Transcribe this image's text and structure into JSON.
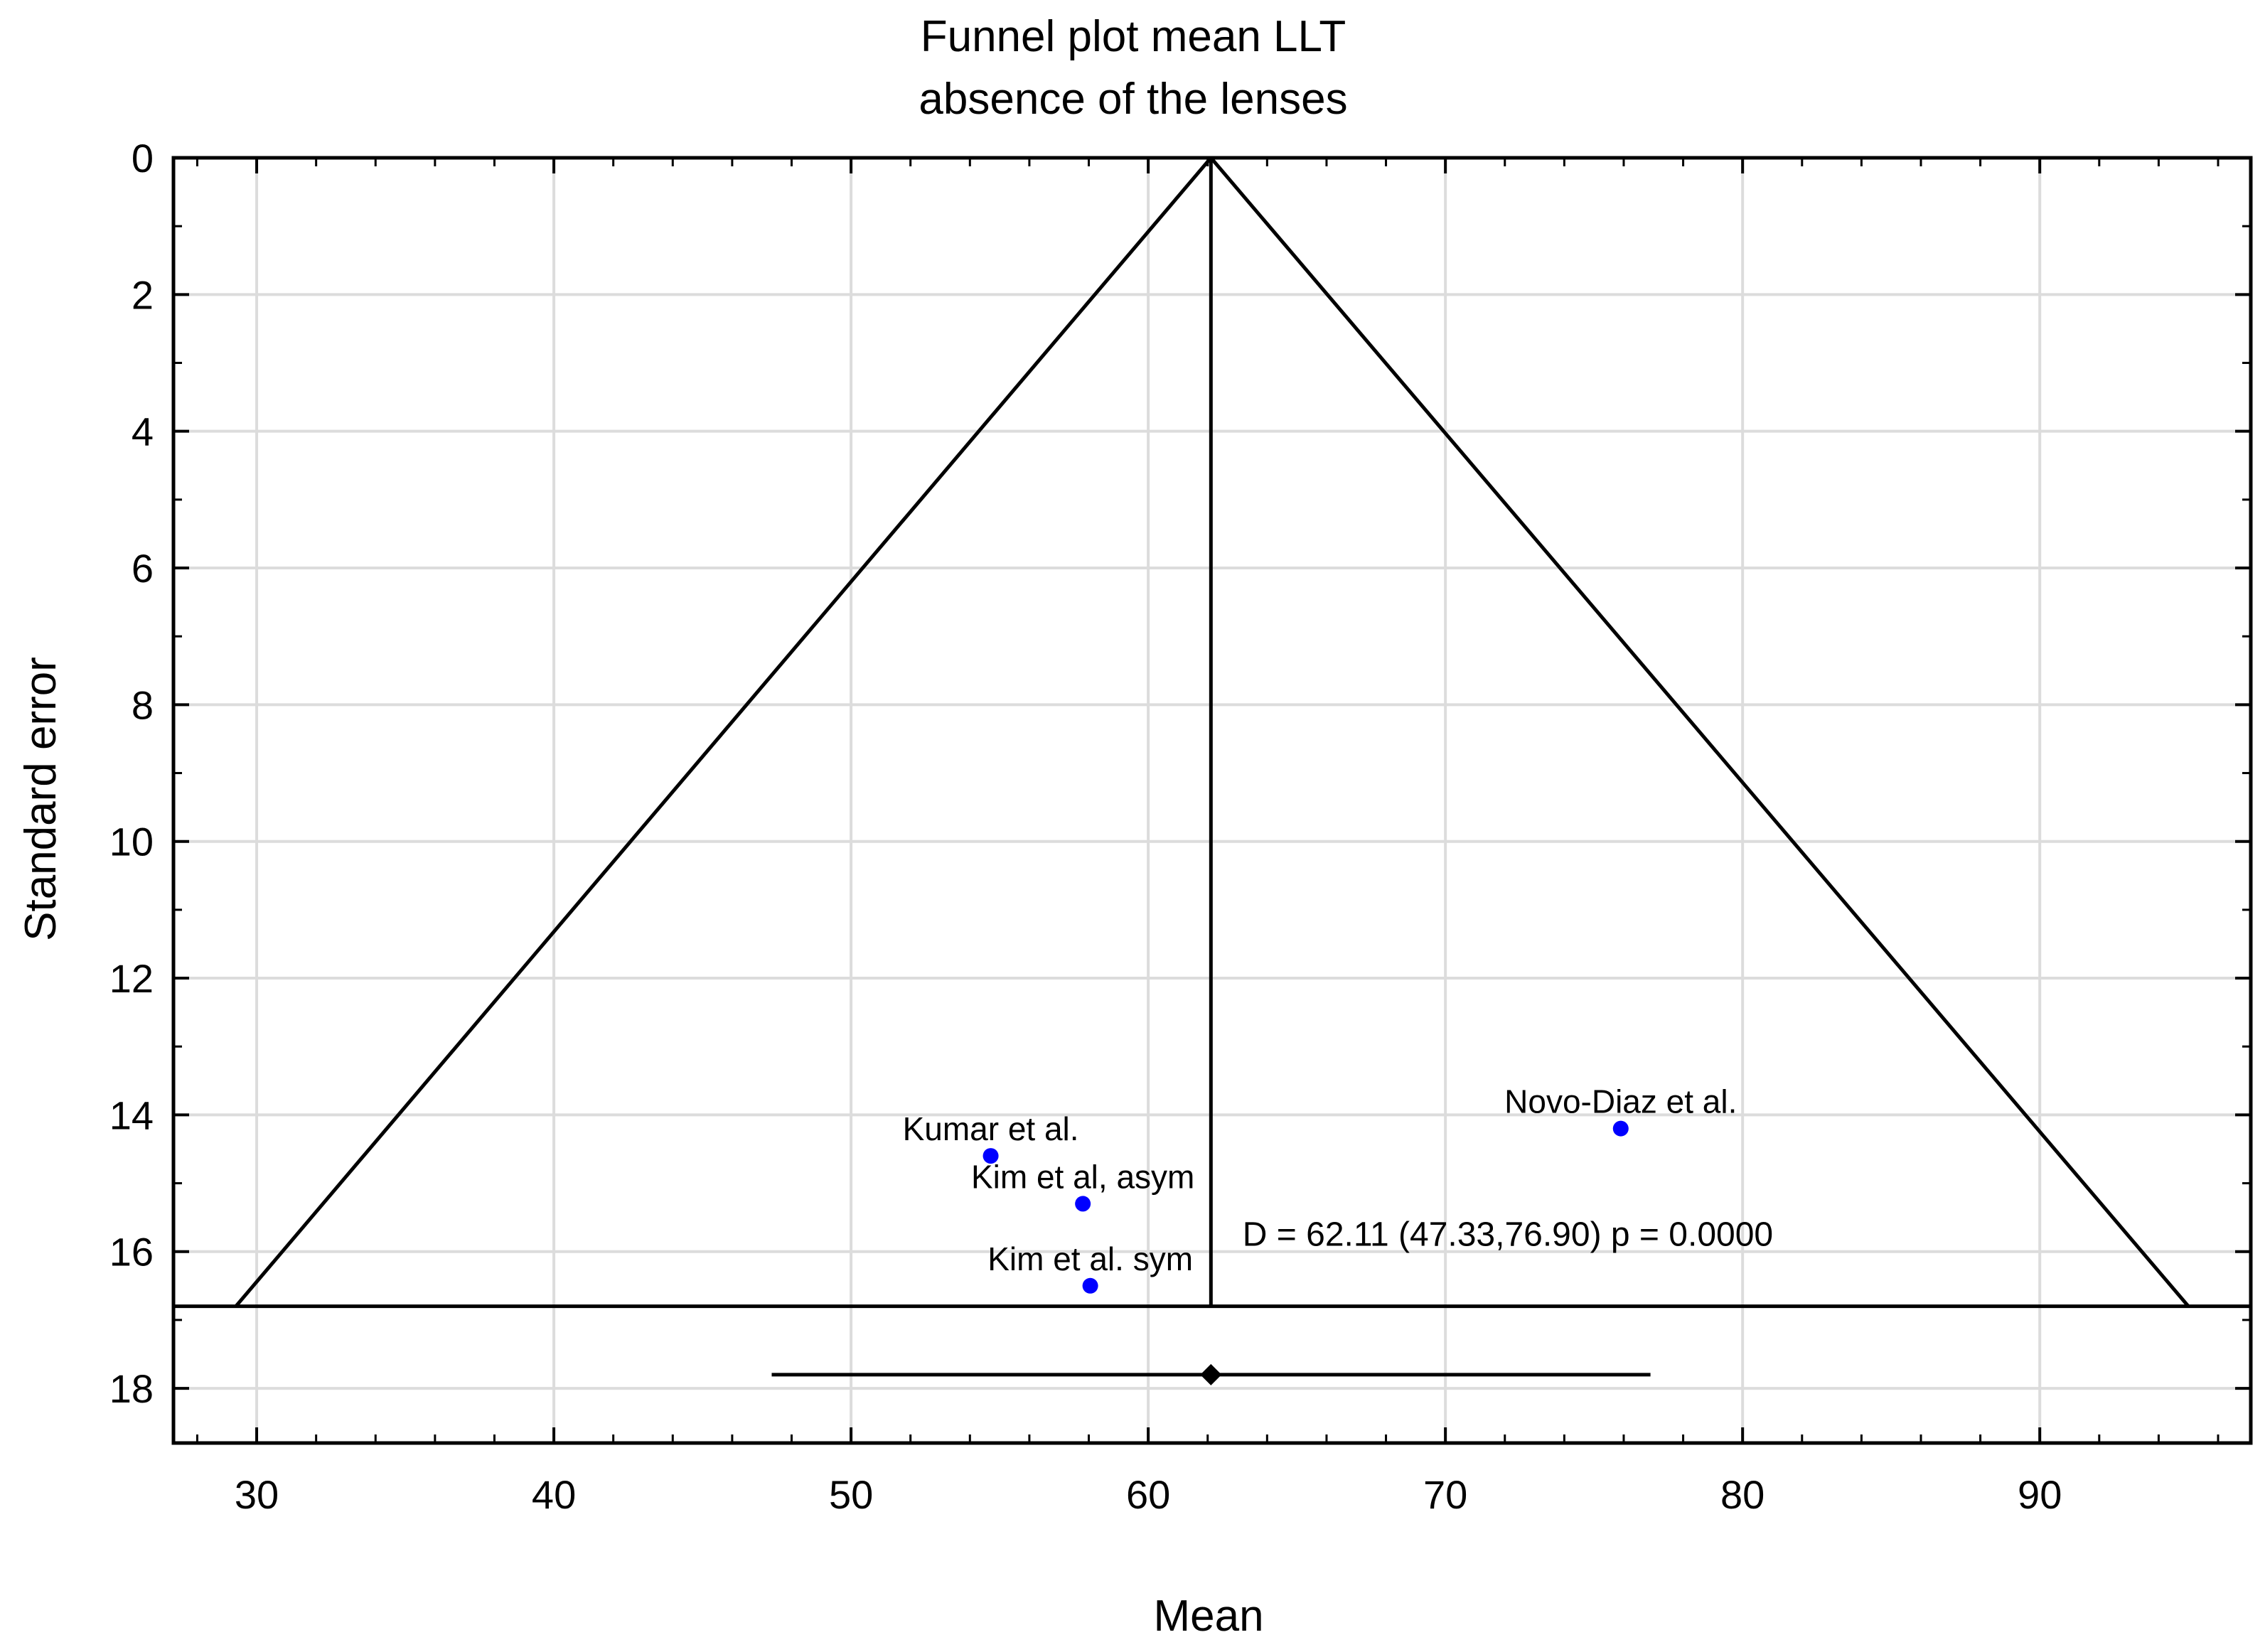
{
  "chart_data": {
    "type": "scatter",
    "title": "Funnel plot mean LLT",
    "subtitle": "absence of the lenses",
    "xlabel": "Mean",
    "ylabel": "Standard error",
    "xlim": [
      27.2,
      97.1
    ],
    "ylim": [
      0,
      18.8
    ],
    "y_inverted": true,
    "x_ticks": [
      30,
      40,
      50,
      60,
      70,
      80,
      90
    ],
    "y_ticks": [
      0,
      2,
      4,
      6,
      8,
      10,
      12,
      14,
      16,
      18
    ],
    "grid": true,
    "points": [
      {
        "label": "Kumar et al.",
        "x": 54.7,
        "y": 14.6
      },
      {
        "label": "Kim et al, asym",
        "x": 57.8,
        "y": 15.3
      },
      {
        "label": "Kim et al. sym",
        "x": 58.05,
        "y": 16.5
      },
      {
        "label": "Novo-Diaz et al.",
        "x": 75.9,
        "y": 14.2
      }
    ],
    "point_color": "#0000ff",
    "funnel": {
      "apex_x": 62.11,
      "apex_y": 0,
      "base_y": 16.8,
      "base_left_x": 29.3,
      "base_right_x": 95.0
    },
    "pooled_estimate": {
      "estimate": 62.11,
      "ci_low": 47.33,
      "ci_high": 76.9,
      "y": 17.8
    },
    "annotation": "D = 62.11 (47.33,76.90) p = 0.0000"
  }
}
